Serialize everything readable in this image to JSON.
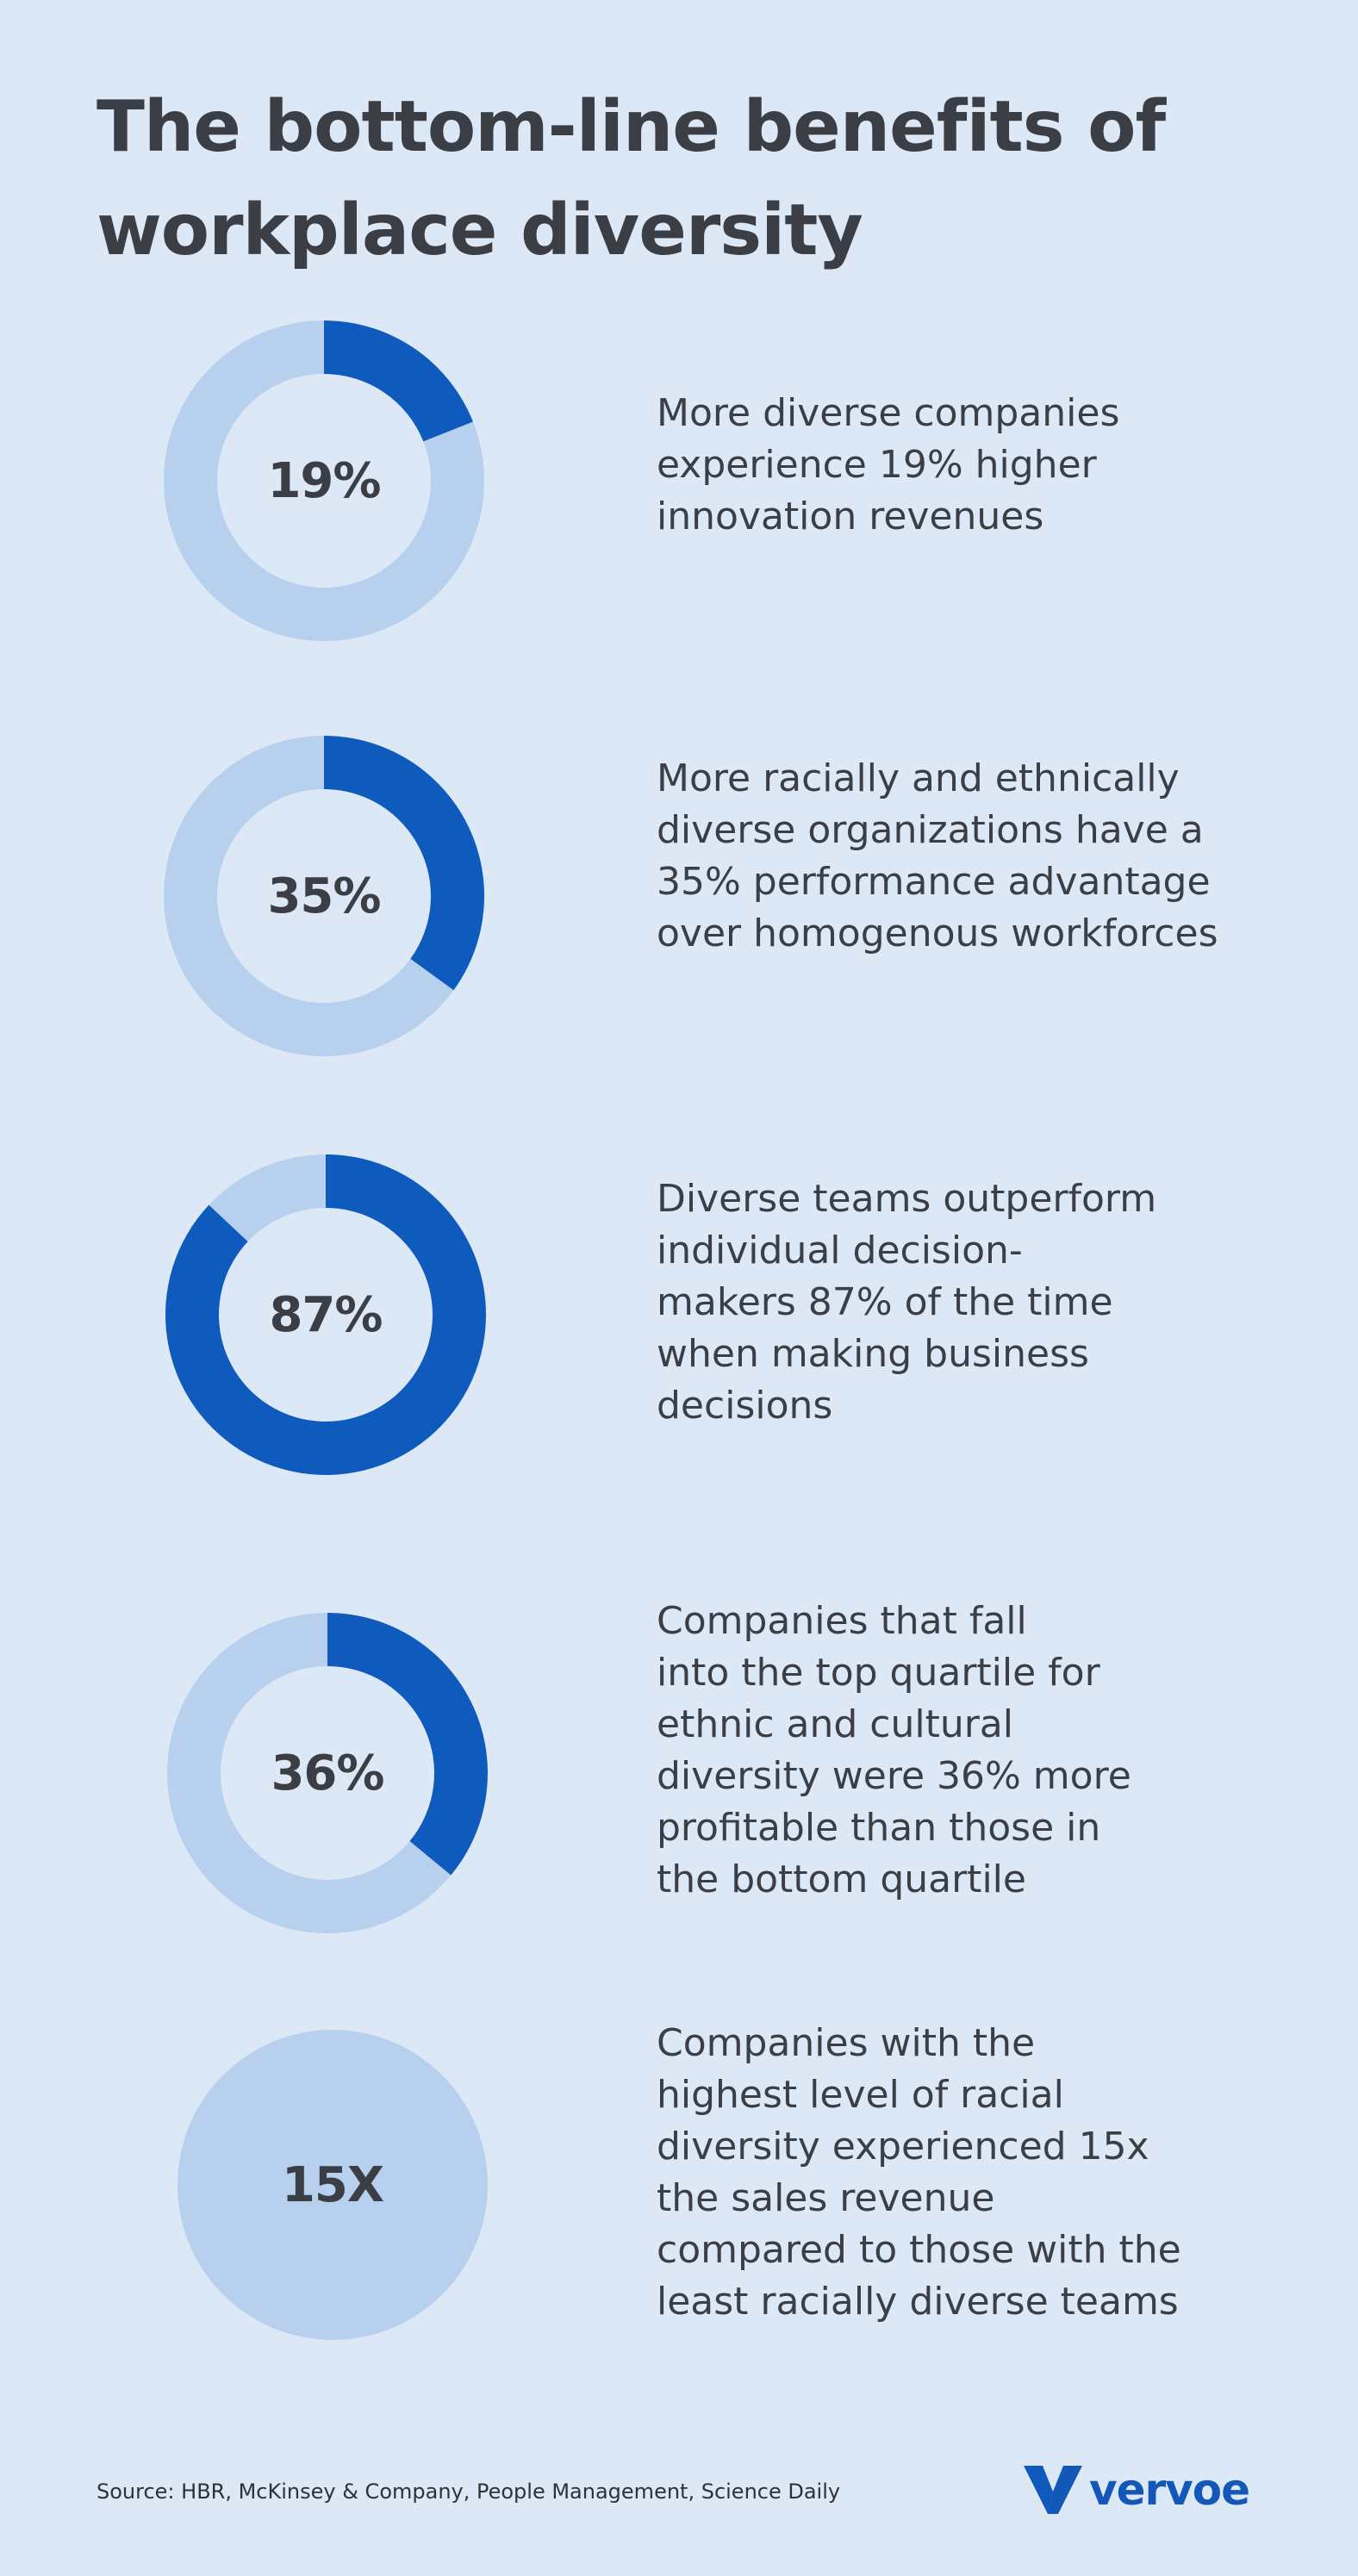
{
  "title_lines": [
    "The bottom-line benefits of",
    "workplace diversity"
  ],
  "colors": {
    "background": "#dce8f6",
    "accent": "#0f5bbd",
    "track": "#b6d0ee",
    "text": "#3b3f45"
  },
  "chart_data": [
    {
      "type": "pie",
      "label": "19%",
      "value": 19,
      "max": 100,
      "description_lines": [
        "More diverse companies",
        "experience 19% higher",
        "innovation revenues"
      ]
    },
    {
      "type": "pie",
      "label": "35%",
      "value": 35,
      "max": 100,
      "description_lines": [
        "More racially and ethnically",
        "diverse organizations have a",
        "35% performance advantage",
        "over homogenous workforces"
      ]
    },
    {
      "type": "pie",
      "label": "87%",
      "value": 87,
      "max": 100,
      "description_lines": [
        "Diverse teams outperform",
        "individual decision-",
        "makers 87% of the time",
        "when making business",
        "decisions"
      ]
    },
    {
      "type": "pie",
      "label": "36%",
      "value": 36,
      "max": 100,
      "description_lines": [
        "Companies that fall",
        "into the top quartile for",
        "ethnic and cultural",
        "diversity were 36% more",
        "profitable than those in",
        "the bottom quartile"
      ]
    },
    {
      "type": "pie",
      "label": "15X",
      "value": 0,
      "max": 100,
      "description_lines": [
        "Companies with the",
        "highest level of racial",
        "diversity experienced 15x",
        "the sales revenue",
        "compared to those with the",
        "least racially diverse teams"
      ]
    }
  ],
  "footer": {
    "source": "Source: HBR, McKinsey & Company, People Management, Science Daily",
    "logo_text": "vervoe",
    "logo_icon": "vervoe-v-logo-icon"
  }
}
